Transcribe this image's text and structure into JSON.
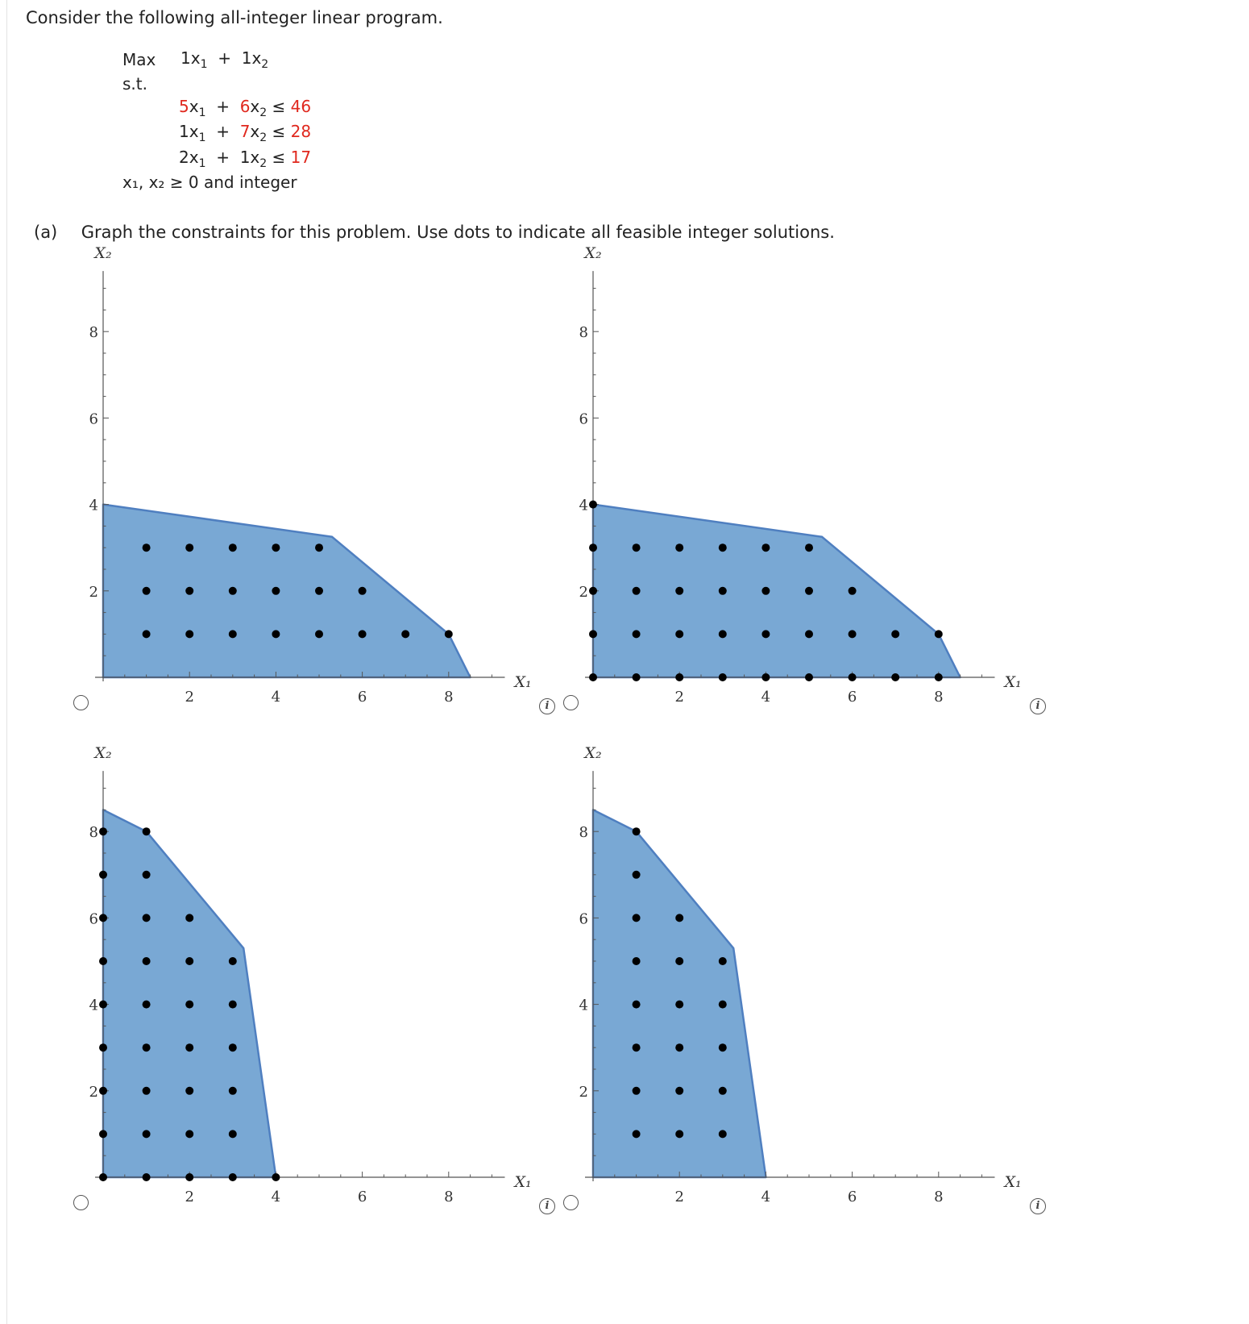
{
  "intro": "Consider the following all-integer linear program.",
  "lp": {
    "max_label": "Max",
    "objective": [
      {
        "coef": "1",
        "var": "x",
        "sub": "1"
      },
      {
        "op": "+"
      },
      {
        "coef": "1",
        "var": "x",
        "sub": "2"
      }
    ],
    "st_label": "s.t.",
    "constraints": [
      {
        "a": "5",
        "b": "6",
        "rhs": "46",
        "a_red": true,
        "b_red": true
      },
      {
        "a": "1",
        "b": "7",
        "rhs": "28",
        "a_red": false,
        "b_red": true
      },
      {
        "a": "2",
        "b": "1",
        "rhs": "17",
        "a_red": false,
        "b_red": false
      }
    ],
    "nonneg": "x₁, x₂ ≥ 0 and integer"
  },
  "part_a": {
    "tag": "(a)",
    "text": "Graph the constraints for this problem. Use dots to indicate all feasible integer solutions."
  },
  "colors": {
    "fill": "#79a8d4",
    "edge": "#4f7fc0",
    "dot": "#000000",
    "red": "#e0281e"
  },
  "chart_data": [
    {
      "type": "scatter",
      "option": "A",
      "xlabel": "X₁",
      "ylabel": "X₂",
      "xticks": [
        2,
        4,
        6,
        8
      ],
      "yticks": [
        2,
        4,
        6,
        8
      ],
      "xlim": [
        0,
        9.3
      ],
      "ylim": [
        0,
        9.4
      ],
      "region": [
        [
          0,
          0
        ],
        [
          0,
          4
        ],
        [
          5.3,
          3.25
        ],
        [
          8,
          1
        ],
        [
          8.5,
          0
        ]
      ],
      "points": [
        [
          1,
          3
        ],
        [
          2,
          3
        ],
        [
          3,
          3
        ],
        [
          4,
          3
        ],
        [
          5,
          3
        ],
        [
          1,
          2
        ],
        [
          2,
          2
        ],
        [
          3,
          2
        ],
        [
          4,
          2
        ],
        [
          5,
          2
        ],
        [
          6,
          2
        ],
        [
          1,
          1
        ],
        [
          2,
          1
        ],
        [
          3,
          1
        ],
        [
          4,
          1
        ],
        [
          5,
          1
        ],
        [
          6,
          1
        ],
        [
          7,
          1
        ],
        [
          8,
          1
        ]
      ]
    },
    {
      "type": "scatter",
      "option": "B",
      "xlabel": "X₁",
      "ylabel": "X₂",
      "xticks": [
        2,
        4,
        6,
        8
      ],
      "yticks": [
        2,
        4,
        6,
        8
      ],
      "xlim": [
        0,
        9.3
      ],
      "ylim": [
        0,
        9.4
      ],
      "region": [
        [
          0,
          0
        ],
        [
          0,
          4
        ],
        [
          5.3,
          3.25
        ],
        [
          8,
          1
        ],
        [
          8.5,
          0
        ]
      ],
      "points": [
        [
          0,
          4
        ],
        [
          0,
          3
        ],
        [
          1,
          3
        ],
        [
          2,
          3
        ],
        [
          3,
          3
        ],
        [
          4,
          3
        ],
        [
          5,
          3
        ],
        [
          0,
          2
        ],
        [
          1,
          2
        ],
        [
          2,
          2
        ],
        [
          3,
          2
        ],
        [
          4,
          2
        ],
        [
          5,
          2
        ],
        [
          6,
          2
        ],
        [
          0,
          1
        ],
        [
          1,
          1
        ],
        [
          2,
          1
        ],
        [
          3,
          1
        ],
        [
          4,
          1
        ],
        [
          5,
          1
        ],
        [
          6,
          1
        ],
        [
          7,
          1
        ],
        [
          8,
          1
        ],
        [
          0,
          0
        ],
        [
          1,
          0
        ],
        [
          2,
          0
        ],
        [
          3,
          0
        ],
        [
          4,
          0
        ],
        [
          5,
          0
        ],
        [
          6,
          0
        ],
        [
          7,
          0
        ],
        [
          8,
          0
        ]
      ]
    },
    {
      "type": "scatter",
      "option": "C",
      "xlabel": "X₁",
      "ylabel": "X₂",
      "xticks": [
        2,
        4,
        6,
        8
      ],
      "yticks": [
        2,
        4,
        6,
        8
      ],
      "xlim": [
        0,
        9.3
      ],
      "ylim": [
        0,
        9.4
      ],
      "region": [
        [
          0,
          0
        ],
        [
          0,
          8.5
        ],
        [
          1,
          8
        ],
        [
          3.25,
          5.3
        ],
        [
          4,
          0
        ]
      ],
      "points": [
        [
          0,
          8
        ],
        [
          1,
          8
        ],
        [
          0,
          7
        ],
        [
          1,
          7
        ],
        [
          0,
          6
        ],
        [
          1,
          6
        ],
        [
          2,
          6
        ],
        [
          0,
          5
        ],
        [
          1,
          5
        ],
        [
          2,
          5
        ],
        [
          3,
          5
        ],
        [
          0,
          4
        ],
        [
          1,
          4
        ],
        [
          2,
          4
        ],
        [
          3,
          4
        ],
        [
          0,
          3
        ],
        [
          1,
          3
        ],
        [
          2,
          3
        ],
        [
          3,
          3
        ],
        [
          0,
          2
        ],
        [
          1,
          2
        ],
        [
          2,
          2
        ],
        [
          3,
          2
        ],
        [
          0,
          1
        ],
        [
          1,
          1
        ],
        [
          2,
          1
        ],
        [
          3,
          1
        ],
        [
          0,
          0
        ],
        [
          1,
          0
        ],
        [
          2,
          0
        ],
        [
          3,
          0
        ],
        [
          4,
          0
        ]
      ]
    },
    {
      "type": "scatter",
      "option": "D",
      "xlabel": "X₁",
      "ylabel": "X₂",
      "xticks": [
        2,
        4,
        6,
        8
      ],
      "yticks": [
        2,
        4,
        6,
        8
      ],
      "xlim": [
        0,
        9.3
      ],
      "ylim": [
        0,
        9.4
      ],
      "region": [
        [
          0,
          0
        ],
        [
          0,
          8.5
        ],
        [
          1,
          8
        ],
        [
          3.25,
          5.3
        ],
        [
          4,
          0
        ]
      ],
      "points": [
        [
          1,
          8
        ],
        [
          1,
          7
        ],
        [
          1,
          6
        ],
        [
          2,
          6
        ],
        [
          1,
          5
        ],
        [
          2,
          5
        ],
        [
          3,
          5
        ],
        [
          1,
          4
        ],
        [
          2,
          4
        ],
        [
          3,
          4
        ],
        [
          1,
          3
        ],
        [
          2,
          3
        ],
        [
          3,
          3
        ],
        [
          1,
          2
        ],
        [
          2,
          2
        ],
        [
          3,
          2
        ],
        [
          1,
          1
        ],
        [
          2,
          1
        ],
        [
          3,
          1
        ]
      ]
    }
  ]
}
